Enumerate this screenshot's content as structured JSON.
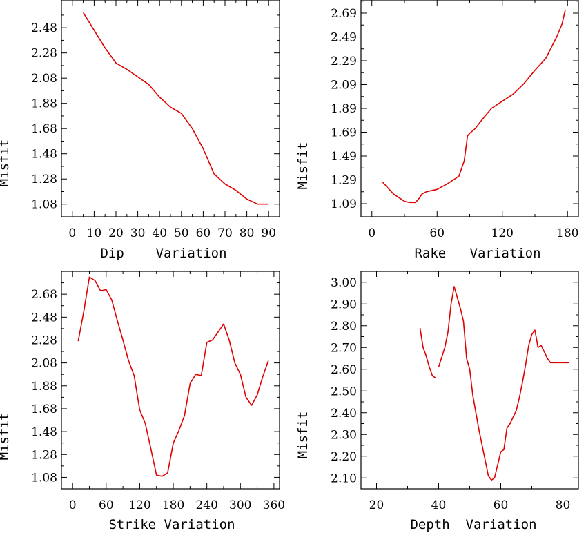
{
  "colors": {
    "line": "#e00000",
    "axis": "#000000",
    "background": "#ffffff"
  },
  "chart_data": [
    {
      "type": "line",
      "xlabel": "Dip    Variation",
      "ylabel": "Misfit",
      "xlim": [
        -5,
        95
      ],
      "ylim": [
        0.98,
        2.7
      ],
      "xticks": [
        0,
        10,
        20,
        30,
        40,
        50,
        60,
        70,
        80,
        90
      ],
      "xtick_labels": [
        "0",
        "10",
        "20",
        "30",
        "40",
        "50",
        "60",
        "70",
        "80",
        "90"
      ],
      "yticks": [
        1.08,
        1.28,
        1.48,
        1.68,
        1.88,
        2.08,
        2.28,
        2.48
      ],
      "ytick_labels": [
        "1.08",
        "1.28",
        "1.48",
        "1.68",
        "1.88",
        "2.08",
        "2.28",
        "2.48"
      ],
      "series": [
        {
          "name": "misfit",
          "segments": [
            {
              "x": [
                5,
                10,
                15,
                20,
                25,
                30,
                35,
                40,
                45,
                50,
                55,
                60,
                65,
                70,
                75,
                80,
                85,
                90
              ],
              "y": [
                2.6,
                2.46,
                2.32,
                2.2,
                2.15,
                2.09,
                2.03,
                1.93,
                1.85,
                1.8,
                1.68,
                1.52,
                1.32,
                1.24,
                1.19,
                1.12,
                1.08,
                1.08
              ]
            }
          ]
        }
      ]
    },
    {
      "type": "line",
      "xlabel": "Rake   Variation",
      "ylabel": "Misfit",
      "xlim": [
        -10,
        190
      ],
      "ylim": [
        0.98,
        2.8
      ],
      "xticks": [
        0,
        60,
        120,
        180
      ],
      "xtick_labels": [
        "0",
        "60",
        "120",
        "180"
      ],
      "yticks": [
        1.09,
        1.29,
        1.49,
        1.69,
        1.89,
        2.09,
        2.29,
        2.49,
        2.69
      ],
      "ytick_labels": [
        "1.09",
        "1.29",
        "1.49",
        "1.69",
        "1.89",
        "2.09",
        "2.29",
        "2.49",
        "2.69"
      ],
      "series": [
        {
          "name": "misfit",
          "segments": [
            {
              "x": [
                10,
                20,
                30,
                35,
                40,
                44,
                46,
                50,
                60,
                70,
                75,
                80,
                85,
                88,
                90,
                95,
                100,
                110,
                120,
                130,
                140,
                150,
                160,
                170,
                175,
                178
              ],
              "y": [
                1.27,
                1.17,
                1.11,
                1.1,
                1.1,
                1.14,
                1.17,
                1.19,
                1.21,
                1.26,
                1.29,
                1.32,
                1.45,
                1.66,
                1.68,
                1.72,
                1.78,
                1.89,
                1.95,
                2.01,
                2.1,
                2.21,
                2.31,
                2.49,
                2.6,
                2.72
              ]
            }
          ]
        }
      ]
    },
    {
      "type": "line",
      "xlabel": "Strike Variation",
      "ylabel": "Misfit",
      "xlim": [
        -20,
        370
      ],
      "ylim": [
        0.98,
        2.88
      ],
      "xticks": [
        0,
        60,
        120,
        180,
        240,
        300,
        360
      ],
      "xtick_labels": [
        "0",
        "60",
        "120",
        "180",
        "240",
        "300",
        "360"
      ],
      "yticks": [
        1.08,
        1.28,
        1.48,
        1.68,
        1.88,
        2.08,
        2.28,
        2.48,
        2.68
      ],
      "ytick_labels": [
        "1.08",
        "1.28",
        "1.48",
        "1.68",
        "1.88",
        "2.08",
        "2.28",
        "2.48",
        "2.68"
      ],
      "series": [
        {
          "name": "misfit",
          "segments": [
            {
              "x": [
                10,
                20,
                30,
                40,
                50,
                60,
                70,
                80,
                90,
                100,
                110,
                120,
                130,
                140,
                150,
                160,
                170,
                180,
                190,
                200,
                210,
                220,
                230,
                240,
                250,
                260,
                270,
                280,
                290,
                300,
                310,
                320,
                330,
                340,
                350
              ],
              "y": [
                2.27,
                2.53,
                2.83,
                2.8,
                2.71,
                2.72,
                2.63,
                2.45,
                2.28,
                2.1,
                1.97,
                1.67,
                1.55,
                1.33,
                1.1,
                1.09,
                1.12,
                1.38,
                1.49,
                1.62,
                1.9,
                1.98,
                1.97,
                2.26,
                2.28,
                2.35,
                2.42,
                2.28,
                2.08,
                1.98,
                1.78,
                1.71,
                1.8,
                1.96,
                2.1
              ]
            }
          ]
        }
      ]
    },
    {
      "type": "line",
      "xlabel": "Depth  Variation",
      "ylabel": "Misfit",
      "xlim": [
        15,
        85
      ],
      "ylim": [
        2.05,
        3.05
      ],
      "xticks": [
        20,
        40,
        60,
        80
      ],
      "xtick_labels": [
        "20",
        "40",
        "60",
        "80"
      ],
      "yticks": [
        2.1,
        2.2,
        2.3,
        2.4,
        2.5,
        2.6,
        2.7,
        2.8,
        2.9,
        3.0
      ],
      "ytick_labels": [
        "2.10",
        "2.20",
        "2.30",
        "2.40",
        "2.50",
        "2.60",
        "2.70",
        "2.80",
        "2.90",
        "3.00"
      ],
      "series": [
        {
          "name": "misfit",
          "segments": [
            {
              "x": [
                34,
                35,
                36,
                37,
                38,
                39
              ],
              "y": [
                2.79,
                2.7,
                2.66,
                2.61,
                2.57,
                2.56
              ]
            },
            {
              "x": [
                40,
                42,
                43,
                44,
                45,
                46,
                47,
                48,
                49,
                50,
                51,
                52,
                53,
                54,
                55,
                56,
                57,
                58,
                59,
                60,
                61,
                62,
                63,
                64,
                65,
                66,
                67,
                68,
                69,
                70,
                71,
                72,
                73,
                74,
                75,
                76,
                77,
                78,
                79,
                80,
                81,
                82
              ],
              "y": [
                2.61,
                2.7,
                2.77,
                2.9,
                2.98,
                2.93,
                2.88,
                2.82,
                2.65,
                2.6,
                2.48,
                2.4,
                2.32,
                2.25,
                2.18,
                2.11,
                2.09,
                2.1,
                2.16,
                2.22,
                2.23,
                2.33,
                2.35,
                2.38,
                2.41,
                2.47,
                2.54,
                2.62,
                2.71,
                2.76,
                2.78,
                2.7,
                2.71,
                2.68,
                2.65,
                2.63,
                2.63,
                2.63,
                2.63,
                2.63,
                2.63,
                2.63
              ]
            }
          ]
        }
      ]
    }
  ]
}
